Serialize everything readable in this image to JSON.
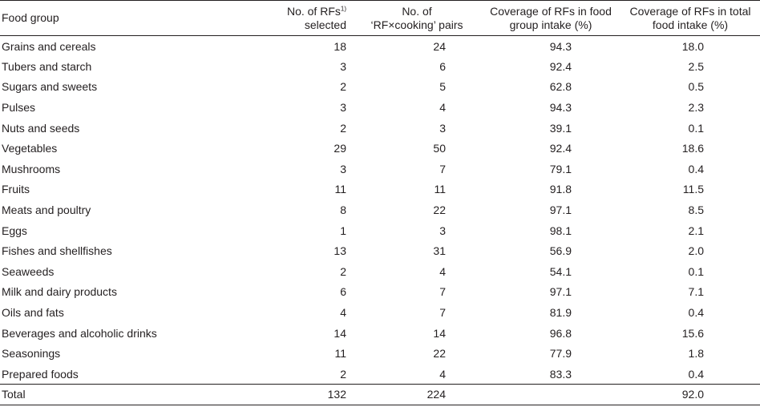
{
  "headers": {
    "food_group": "Food group",
    "rfs_selected_line1": "No. of RFs",
    "rfs_selected_footnote": "1)",
    "rfs_selected_line2": "selected",
    "pairs_line1": "No. of",
    "pairs_line2": "‘RF×cooking’ pairs",
    "coverage_group_line1": "Coverage of RFs in food",
    "coverage_group_line2": "group intake (%)",
    "coverage_total_line1": "Coverage of RFs in total",
    "coverage_total_line2": "food intake (%)"
  },
  "rows": [
    {
      "group": "Grains and cereals",
      "rfs": "18",
      "pairs": "24",
      "cov_group": "94.3",
      "cov_total": "18.0"
    },
    {
      "group": "Tubers and starch",
      "rfs": "3",
      "pairs": "6",
      "cov_group": "92.4",
      "cov_total": "2.5"
    },
    {
      "group": "Sugars and sweets",
      "rfs": "2",
      "pairs": "5",
      "cov_group": "62.8",
      "cov_total": "0.5"
    },
    {
      "group": "Pulses",
      "rfs": "3",
      "pairs": "4",
      "cov_group": "94.3",
      "cov_total": "2.3"
    },
    {
      "group": "Nuts and seeds",
      "rfs": "2",
      "pairs": "3",
      "cov_group": "39.1",
      "cov_total": "0.1"
    },
    {
      "group": "Vegetables",
      "rfs": "29",
      "pairs": "50",
      "cov_group": "92.4",
      "cov_total": "18.6"
    },
    {
      "group": "Mushrooms",
      "rfs": "3",
      "pairs": "7",
      "cov_group": "79.1",
      "cov_total": "0.4"
    },
    {
      "group": "Fruits",
      "rfs": "11",
      "pairs": "11",
      "cov_group": "91.8",
      "cov_total": "11.5"
    },
    {
      "group": "Meats and poultry",
      "rfs": "8",
      "pairs": "22",
      "cov_group": "97.1",
      "cov_total": "8.5"
    },
    {
      "group": "Eggs",
      "rfs": "1",
      "pairs": "3",
      "cov_group": "98.1",
      "cov_total": "2.1"
    },
    {
      "group": "Fishes and shellfishes",
      "rfs": "13",
      "pairs": "31",
      "cov_group": "56.9",
      "cov_total": "2.0"
    },
    {
      "group": "Seaweeds",
      "rfs": "2",
      "pairs": "4",
      "cov_group": "54.1",
      "cov_total": "0.1"
    },
    {
      "group": "Milk and dairy products",
      "rfs": "6",
      "pairs": "7",
      "cov_group": "97.1",
      "cov_total": "7.1"
    },
    {
      "group": "Oils and fats",
      "rfs": "4",
      "pairs": "7",
      "cov_group": "81.9",
      "cov_total": "0.4"
    },
    {
      "group": "Beverages and alcoholic drinks",
      "rfs": "14",
      "pairs": "14",
      "cov_group": "96.8",
      "cov_total": "15.6"
    },
    {
      "group": "Seasonings",
      "rfs": "11",
      "pairs": "22",
      "cov_group": "77.9",
      "cov_total": "1.8"
    },
    {
      "group": "Prepared foods",
      "rfs": "2",
      "pairs": "4",
      "cov_group": "83.3",
      "cov_total": "0.4"
    }
  ],
  "total": {
    "group": "Total",
    "rfs": "132",
    "pairs": "224",
    "cov_group": "",
    "cov_total": "92.0"
  }
}
